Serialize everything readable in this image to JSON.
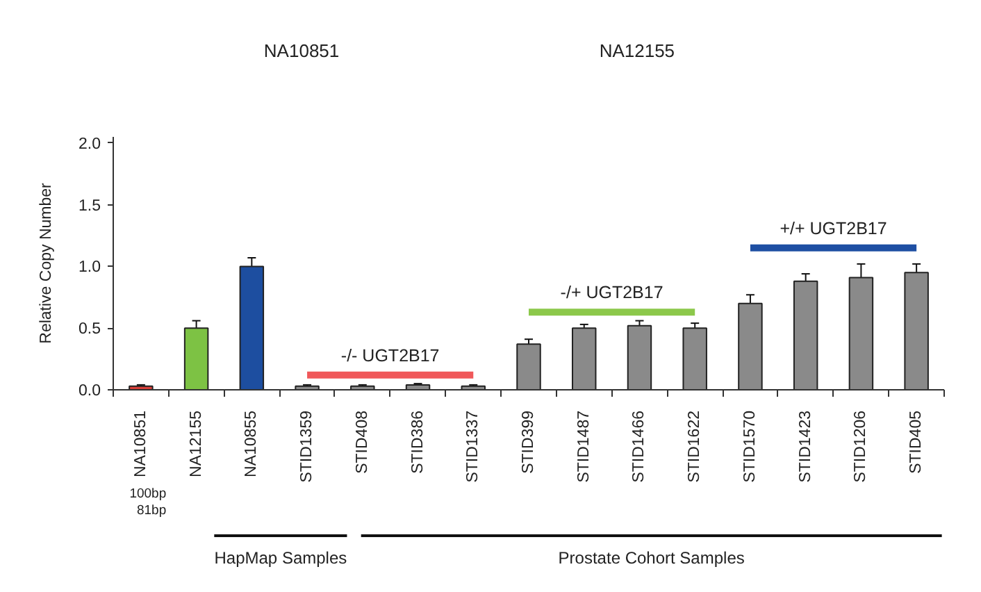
{
  "chart_data": {
    "type": "bar",
    "ylabel": "Relative Copy Number",
    "categories": [
      "NA10851",
      "NA12155",
      "NA10855",
      "STID1359",
      "STID408",
      "STID386",
      "STID1337",
      "STID399",
      "STID1487",
      "STID1466",
      "STID1622",
      "STID1570",
      "STID1423",
      "STID1206",
      "STID405"
    ],
    "series": [
      {
        "colors": [
          "#d9403a",
          "#7dc244",
          "#1d4ea0",
          "#8a8a8a",
          "#8a8a8a",
          "#8a8a8a",
          "#8a8a8a",
          "#8a8a8a",
          "#8a8a8a",
          "#8a8a8a",
          "#8a8a8a",
          "#8a8a8a",
          "#8a8a8a",
          "#8a8a8a",
          "#8a8a8a"
        ],
        "values": [
          0.03,
          0.5,
          1.0,
          0.03,
          0.03,
          0.04,
          0.03,
          0.37,
          0.5,
          0.52,
          0.5,
          0.7,
          0.88,
          0.91,
          0.95
        ],
        "errors": [
          0.01,
          0.06,
          0.07,
          0.01,
          0.01,
          0.01,
          0.01,
          0.04,
          0.03,
          0.04,
          0.04,
          0.07,
          0.06,
          0.11,
          0.07
        ]
      },
      {
        "type": "line",
        "name": "-/- UGT2B17",
        "color": "#f0585a",
        "x": [
          "STID1359",
          "STID1337"
        ],
        "values": [
          0.12,
          0.12
        ]
      },
      {
        "type": "line",
        "name": "-/+ UGT2B17",
        "color": "#8cc84b",
        "x": [
          "STID399",
          "STID1622"
        ],
        "values": [
          0.63,
          0.63
        ]
      },
      {
        "type": "line",
        "name": "+/+ UGT2B17",
        "color": "#1e4fa3",
        "x": [
          "STID1570",
          "STID405"
        ],
        "values": [
          1.15,
          1.15
        ]
      }
    ],
    "ylim": [
      0,
      2.05
    ],
    "yticks": [
      {
        "value": 0,
        "label": "0.0"
      },
      0.5,
      {
        "value": 1,
        "label": "1.0"
      },
      1.5,
      {
        "value": 2,
        "label": "2.0"
      }
    ],
    "grid": false,
    "annotations": [
      "NA10851",
      "NA12155",
      "100bp",
      "81bp",
      "HapMap Samples",
      "Prostate Cohort Samples"
    ]
  }
}
